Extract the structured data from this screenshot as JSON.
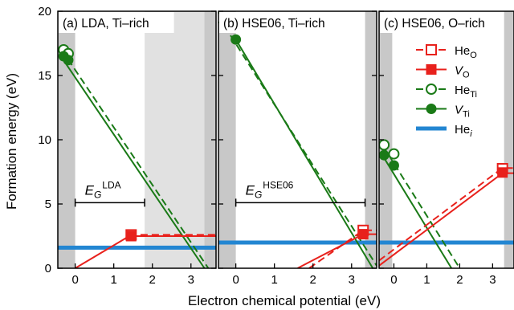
{
  "chart_data": {
    "type": "line",
    "xlabel": "Electron chemical potential (eV)",
    "ylabel": "Formation energy (eV)",
    "ylim": [
      0,
      20
    ],
    "yticks": [
      0,
      5,
      10,
      15,
      20
    ],
    "legend": {
      "placement": "top-right of panel (c)",
      "entries": [
        {
          "key": "HeO",
          "base": "He",
          "sub": "O",
          "color": "#e8211c",
          "style": "dashed",
          "marker": "open-square"
        },
        {
          "key": "VO",
          "base": "V",
          "sub": "O",
          "color": "#e8211c",
          "style": "solid",
          "marker": "filled-square",
          "italic": true
        },
        {
          "key": "HeTi",
          "base": "He",
          "sub": "Ti",
          "color": "#1a7a17",
          "style": "dashed",
          "marker": "open-circle"
        },
        {
          "key": "VTi",
          "base": "V",
          "sub": "Ti",
          "color": "#1a7a17",
          "style": "solid",
          "marker": "filled-circle",
          "italic": true
        },
        {
          "key": "Hei",
          "base": "He",
          "sub": "i",
          "color": "#2386d2",
          "style": "thick-solid",
          "marker": "none",
          "subItalic": true
        }
      ]
    },
    "panels": [
      {
        "title": "(a) LDA, Ti–rich",
        "xlim": [
          -0.45,
          3.65
        ],
        "xticks": [
          0,
          1,
          2,
          3
        ],
        "shade": [
          {
            "x0": -0.45,
            "x1": 0,
            "tone": "dark"
          },
          {
            "x0": 1.8,
            "x1": 3.65,
            "tone": "light"
          },
          {
            "x0": 3.35,
            "x1": 3.65,
            "tone": "dark"
          }
        ],
        "gap": {
          "label": "E",
          "sub": "G",
          "sup": "LDA",
          "x0": 0,
          "x1": 1.8,
          "y": 5.1
        },
        "series": {
          "HeO": [
            [
              1.4,
              2.6
            ],
            [
              3.65,
              2.6
            ]
          ],
          "VO": [
            [
              0,
              0
            ],
            [
              1.4,
              2.5
            ],
            [
              3.65,
              2.5
            ]
          ],
          "HeTi": [
            [
              -0.35,
              17.0
            ],
            [
              3.45,
              0
            ]
          ],
          "VTi": [
            [
              -0.35,
              16.4
            ],
            [
              3.35,
              0
            ]
          ],
          "Hei": [
            [
              -0.45,
              1.6
            ],
            [
              3.65,
              1.6
            ]
          ]
        },
        "markers": {
          "HeO": [
            [
              1.45,
              2.6
            ]
          ],
          "VO": [
            [
              1.45,
              2.5
            ]
          ],
          "HeTi": [
            [
              -0.3,
              17.0
            ],
            [
              -0.18,
              16.7
            ]
          ],
          "VTi": [
            [
              -0.3,
              16.5
            ],
            [
              -0.18,
              16.2
            ]
          ]
        }
      },
      {
        "title": "(b) HSE06, Ti–rich",
        "xlim": [
          -0.45,
          3.65
        ],
        "xticks": [
          0,
          1,
          2,
          3
        ],
        "shade": [
          {
            "x0": -0.45,
            "x1": 0,
            "tone": "dark"
          },
          {
            "x0": 3.35,
            "x1": 3.65,
            "tone": "dark"
          }
        ],
        "gap": {
          "label": "E",
          "sub": "G",
          "sup": "HSE06",
          "x0": 0,
          "x1": 3.35,
          "y": 5.1
        },
        "series": {
          "HeO": [
            [
              1.9,
              0
            ],
            [
              3.3,
              2.95
            ],
            [
              3.65,
              2.95
            ]
          ],
          "VO": [
            [
              1.6,
              0
            ],
            [
              3.3,
              2.65
            ],
            [
              3.65,
              2.65
            ]
          ],
          "HeTi": [
            [
              -0.45,
              19.6
            ],
            [
              3.65,
              0.2
            ]
          ],
          "VTi": [
            [
              0,
              17.8
            ],
            [
              3.55,
              0
            ]
          ],
          "Hei": [
            [
              -0.45,
              2.0
            ],
            [
              3.65,
              2.0
            ]
          ]
        },
        "markers": {
          "HeO": [
            [
              3.3,
              2.95
            ]
          ],
          "VO": [
            [
              3.3,
              2.65
            ]
          ],
          "HeTi": [
            [
              -0.45,
              19.5
            ]
          ],
          "VTi": [
            [
              0,
              17.8
            ]
          ]
        }
      },
      {
        "title": "(c) HSE06, O–rich",
        "xlim": [
          -0.45,
          3.65
        ],
        "xticks": [
          0,
          1,
          2,
          3
        ],
        "shade": [
          {
            "x0": -0.45,
            "x1": -0.05,
            "tone": "dark"
          },
          {
            "x0": 3.35,
            "x1": 3.65,
            "tone": "dark"
          }
        ],
        "series": {
          "HeO": [
            [
              -0.45,
              0.6
            ],
            [
              3.3,
              7.8
            ],
            [
              3.65,
              7.8
            ]
          ],
          "VO": [
            [
              -0.45,
              0.2
            ],
            [
              3.3,
              7.4
            ],
            [
              3.65,
              7.4
            ]
          ],
          "HeTi": [
            [
              -0.35,
              9.6
            ],
            [
              2.0,
              0
            ]
          ],
          "VTi": [
            [
              -0.35,
              8.8
            ],
            [
              1.75,
              0
            ]
          ],
          "Hei": [
            [
              -0.45,
              2.0
            ],
            [
              3.65,
              2.0
            ]
          ]
        },
        "markers": {
          "HeO": [
            [
              3.3,
              7.75
            ]
          ],
          "VO": [
            [
              3.3,
              7.45
            ]
          ],
          "HeTi": [
            [
              -0.3,
              9.6
            ],
            [
              0,
              8.9
            ]
          ],
          "VTi": [
            [
              -0.3,
              8.8
            ],
            [
              0,
              8.0
            ]
          ]
        }
      }
    ]
  }
}
